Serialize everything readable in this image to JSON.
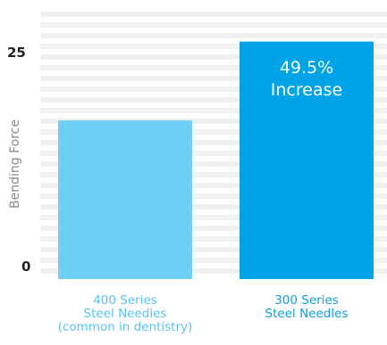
{
  "chart_data": {
    "type": "bar",
    "ylabel": "Bending Force",
    "yticks": [
      "0",
      "25"
    ],
    "ylim": [
      0,
      30
    ],
    "grid": true,
    "categories": [
      {
        "lines": [
          "400 Series",
          "Steel Needles",
          "(common in dentistry)"
        ],
        "color": "#6dcff4",
        "label_color": "#57c4ee"
      },
      {
        "lines": [
          "300 Series",
          "Steel Needles"
        ],
        "color": "#00a3e6",
        "label_color": "#0a9fe0"
      }
    ],
    "values": [
      17.5,
      26.2
    ],
    "annotation": {
      "lines": [
        "49.5%",
        "Increase"
      ],
      "bar_index": 1
    }
  }
}
